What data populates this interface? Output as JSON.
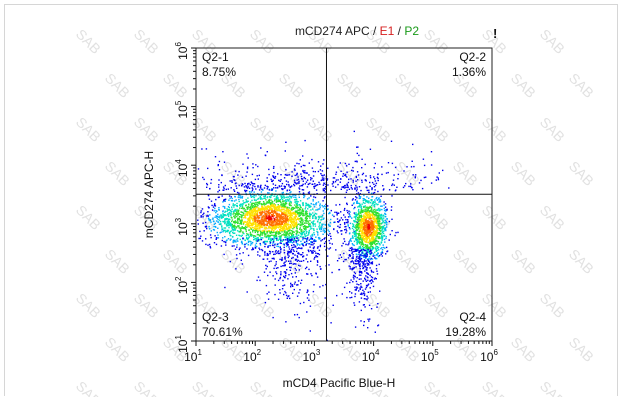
{
  "chart_data": {
    "type": "scatter",
    "title": {
      "parts": [
        {
          "text": "mCD274 APC",
          "color": "#222222"
        },
        {
          "text": " / ",
          "color": "#222222"
        },
        {
          "text": "E1",
          "color": "#d62020"
        },
        {
          "text": " / ",
          "color": "#222222"
        },
        {
          "text": "P2",
          "color": "#1a9a1a"
        }
      ],
      "flag": "!"
    },
    "xlabel": "mCD4 Pacific Blue-H",
    "ylabel": "mCD274 APC-H",
    "xscale": "log",
    "yscale": "log",
    "xlim": [
      10,
      1000000
    ],
    "ylim": [
      10,
      1000000
    ],
    "x_ticks": [
      {
        "base": "10",
        "exp": "1",
        "value": 10
      },
      {
        "base": "10",
        "exp": "2",
        "value": 100
      },
      {
        "base": "10",
        "exp": "3",
        "value": 1000
      },
      {
        "base": "10",
        "exp": "4",
        "value": 10000
      },
      {
        "base": "10",
        "exp": "5",
        "value": 100000
      },
      {
        "base": "10",
        "exp": "6",
        "value": 1000000
      }
    ],
    "y_ticks": [
      {
        "base": "10",
        "exp": "1",
        "value": 10
      },
      {
        "base": "10",
        "exp": "2",
        "value": 100
      },
      {
        "base": "10",
        "exp": "3",
        "value": 1000
      },
      {
        "base": "10",
        "exp": "4",
        "value": 10000
      },
      {
        "base": "10",
        "exp": "5",
        "value": 100000
      },
      {
        "base": "10",
        "exp": "6",
        "value": 1000000
      }
    ],
    "gates": {
      "x": 1600,
      "y": 3200
    },
    "quadrants": [
      {
        "id": "Q2-1",
        "percent": "8.75%",
        "corner": "top-left"
      },
      {
        "id": "Q2-2",
        "percent": "1.36%",
        "corner": "top-right"
      },
      {
        "id": "Q2-3",
        "percent": "70.61%",
        "corner": "bottom-left"
      },
      {
        "id": "Q2-4",
        "percent": "19.28%",
        "corner": "bottom-right"
      }
    ],
    "populations": [
      {
        "center_x": 180,
        "center_y": 1300,
        "weight": 0.72
      },
      {
        "center_x": 8000,
        "center_y": 900,
        "weight": 0.28
      }
    ],
    "density_colors": [
      "#0000ee",
      "#00aaff",
      "#00e0c0",
      "#30e030",
      "#ffe000",
      "#ff7000",
      "#ee0000"
    ],
    "watermark": "SAB",
    "grid": false
  }
}
